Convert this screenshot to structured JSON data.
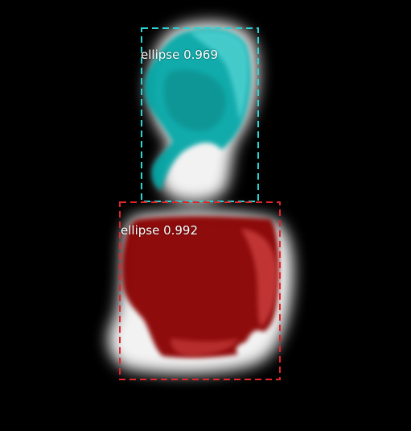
{
  "image": {
    "background_color": "#000000"
  },
  "detections": [
    {
      "class_name": "ellipse",
      "score": "0.969",
      "mask_color": "#00a6a6",
      "box_color": "#2ad4d4"
    },
    {
      "class_name": "ellipse",
      "score": "0.992",
      "mask_color": "#8a0000",
      "box_color": "#e0262b"
    }
  ]
}
